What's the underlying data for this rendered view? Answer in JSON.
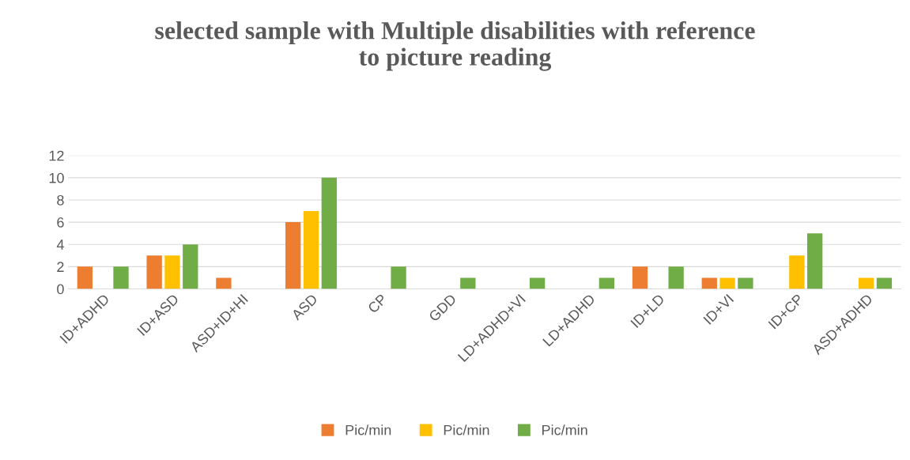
{
  "chart_data": {
    "type": "bar",
    "title": "selected sample with Multiple disabilities with reference\nto picture reading",
    "categories": [
      "ID+ADHD",
      "ID+ASD",
      "ASD+ID+HI",
      "ASD",
      "CP",
      "GDD",
      "LD+ADHD+VI",
      "LD+ADHD",
      "ID+LD",
      "ID+VI",
      "ID+CP",
      "ASD+ADHD"
    ],
    "series": [
      {
        "name": "Pic/min",
        "color": "#ed7d31",
        "values": [
          2,
          3,
          1,
          6,
          null,
          null,
          null,
          null,
          2,
          1,
          null,
          null
        ]
      },
      {
        "name": "Pic/min",
        "color": "#ffc000",
        "values": [
          null,
          3,
          null,
          7,
          null,
          null,
          null,
          null,
          null,
          1,
          3,
          1
        ]
      },
      {
        "name": "Pic/min",
        "color": "#70ad47",
        "values": [
          2,
          4,
          null,
          10,
          2,
          1,
          1,
          1,
          2,
          1,
          5,
          1
        ]
      }
    ],
    "ylim": [
      0,
      12
    ],
    "yticks": [
      0,
      2,
      4,
      6,
      8,
      10,
      12
    ],
    "grid": "y",
    "legend": "bottom"
  }
}
